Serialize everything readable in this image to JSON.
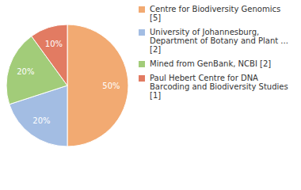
{
  "chart_data": {
    "type": "pie",
    "categories": [
      "Centre for Biodiversity Genomics [5]",
      "University of Johannesburg, Department of Botany and Plant ... [2]",
      "Mined from GenBank, NCBI [2]",
      "Paul Hebert Centre for DNA Barcoding and Biodiversity Studies [1]"
    ],
    "values": [
      50,
      20,
      20,
      10
    ],
    "value_labels": [
      "50%",
      "20%",
      "20%",
      "10%"
    ],
    "colors": [
      "#f2aa72",
      "#a3bde3",
      "#a2cc79",
      "#e27b62"
    ],
    "data_labels": true,
    "legend": "right"
  }
}
